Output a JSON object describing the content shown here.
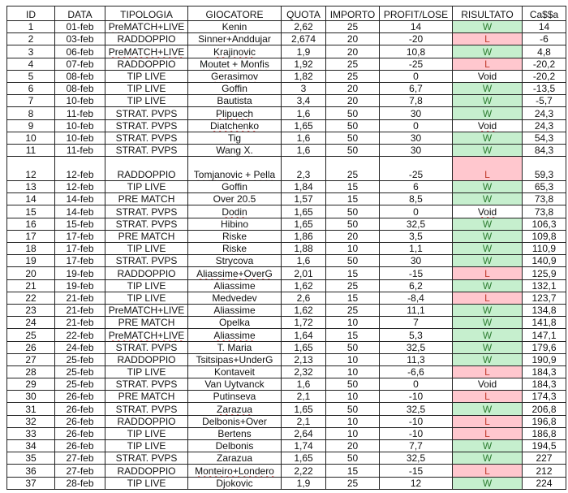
{
  "headers": [
    "ID",
    "DATA",
    "TIPOLOGIA",
    "GIOCATORE",
    "QUOTA",
    "IMPORTO",
    "PROFIT/LOSE",
    "RISULTATO",
    "Ca$$a"
  ],
  "result_colors": {
    "W": {
      "bg": "#c6efce",
      "fg": "#2e7d32"
    },
    "L": {
      "bg": "#ffc7ce",
      "fg": "#c0392b"
    }
  },
  "rows": [
    [
      "1",
      "01-feb",
      "PreMATCH+LIVE",
      "Kenin",
      "2,62",
      "25",
      "14",
      "W",
      "14"
    ],
    [
      "2",
      "03-feb",
      "RADDOPPIO",
      "Sinner+Anddujar",
      "2,674",
      "20",
      "-20",
      "L",
      "-6"
    ],
    [
      "3",
      "06-feb",
      "PreMATCH+LIVE",
      "Krajinovic",
      "1,9",
      "20",
      "10,8",
      "W",
      "4,8"
    ],
    [
      "4",
      "07-feb",
      "RADDOPPIO",
      "Moutet + Monfis",
      "1,92",
      "25",
      "-25",
      "L",
      "-20,2"
    ],
    [
      "5",
      "08-feb",
      "TIP LIVE",
      "Gerasimov",
      "1,82",
      "25",
      "0",
      "Void",
      "-20,2"
    ],
    [
      "6",
      "08-feb",
      "TIP LIVE",
      "Goffin",
      "3",
      "20",
      "6,7",
      "W",
      "-13,5"
    ],
    [
      "7",
      "10-feb",
      "TIP LIVE",
      "Bautista",
      "3,4",
      "20",
      "7,8",
      "W",
      "-5,7"
    ],
    [
      "8",
      "11-feb",
      "STRAT. PVPS",
      "Plipuech",
      "1,6",
      "50",
      "30",
      "W",
      "24,3"
    ],
    [
      "9",
      "10-feb",
      "STRAT. PVPS",
      "Diatchenko",
      "1,65",
      "50",
      "0",
      "Void",
      "24,3"
    ],
    [
      "10",
      "10-feb",
      "STRAT. PVPS",
      "Tig",
      "1,6",
      "50",
      "30",
      "W",
      "54,3"
    ],
    [
      "11",
      "11-feb",
      "STRAT. PVPS",
      "Wang X.",
      "1,6",
      "50",
      "30",
      "W",
      "84,3"
    ],
    [
      "12",
      "12-feb",
      "RADDOPPIO",
      "Tomjanovic + Pella",
      "2,3",
      "25",
      "-25",
      "L",
      "59,3"
    ],
    [
      "13",
      "12-feb",
      "TIP LIVE",
      "Goffin",
      "1,84",
      "15",
      "6",
      "W",
      "65,3"
    ],
    [
      "14",
      "14-feb",
      "PRE MATCH",
      "Over 20.5",
      "1,57",
      "15",
      "8,5",
      "W",
      "73,8"
    ],
    [
      "15",
      "14-feb",
      "STRAT. PVPS",
      "Dodin",
      "1,65",
      "50",
      "0",
      "Void",
      "73,8"
    ],
    [
      "16",
      "15-feb",
      "STRAT. PVPS",
      "Hibino",
      "1,65",
      "50",
      "32,5",
      "W",
      "106,3"
    ],
    [
      "17",
      "17-feb",
      "PRE MATCH",
      "Riske",
      "1,86",
      "20",
      "3,5",
      "W",
      "109,8"
    ],
    [
      "18",
      "17-feb",
      "TIP LIVE",
      "Riske",
      "1,88",
      "10",
      "1,1",
      "W",
      "110,9"
    ],
    [
      "19",
      "17-feb",
      "STRAT. PVPS",
      "Strycova",
      "1,6",
      "50",
      "30",
      "W",
      "140,9"
    ],
    [
      "20",
      "19-feb",
      "RADDOPPIO",
      "Aliassime+OverG",
      "2,01",
      "15",
      "-15",
      "L",
      "125,9"
    ],
    [
      "21",
      "19-feb",
      "TIP LIVE",
      "Aliassime",
      "1,62",
      "25",
      "6,2",
      "W",
      "132,1"
    ],
    [
      "22",
      "21-feb",
      "TIP LIVE",
      "Medvedev",
      "2,6",
      "15",
      "-8,4",
      "L",
      "123,7"
    ],
    [
      "23",
      "21-feb",
      "PreMATCH+LIVE",
      "Aliassime",
      "1,62",
      "25",
      "11,1",
      "W",
      "134,8"
    ],
    [
      "24",
      "21-feb",
      "PRE MATCH",
      "Opelka",
      "1,72",
      "10",
      "7",
      "W",
      "141,8"
    ],
    [
      "25",
      "22-feb",
      "PreMATCH+LIVE",
      "Aliassime",
      "1,64",
      "15",
      "5,3",
      "W",
      "147,1"
    ],
    [
      "26",
      "24-feb",
      "STRAT. PVPS",
      "T. Maria",
      "1,65",
      "50",
      "32,5",
      "W",
      "179,6"
    ],
    [
      "27",
      "25-feb",
      "RADDOPPIO",
      "Tsitsipas+UnderG",
      "2,13",
      "10",
      "11,3",
      "W",
      "190,9"
    ],
    [
      "28",
      "25-feb",
      "TIP LIVE",
      "Kontaveit",
      "2,32",
      "10",
      "-6,6",
      "L",
      "184,3"
    ],
    [
      "29",
      "25-feb",
      "STRAT. PVPS",
      "Van Uytvanck",
      "1,6",
      "50",
      "0",
      "Void",
      "184,3"
    ],
    [
      "30",
      "26-feb",
      "PRE MATCH",
      "Putinseva",
      "2,1",
      "10",
      "-10",
      "L",
      "174,3"
    ],
    [
      "31",
      "26-feb",
      "STRAT. PVPS",
      "Zarazua",
      "1,65",
      "50",
      "32,5",
      "W",
      "206,8"
    ],
    [
      "32",
      "26-feb",
      "RADDOPPIO",
      "Delbonis+Over",
      "2,1",
      "10",
      "-10",
      "L",
      "196,8"
    ],
    [
      "33",
      "26-feb",
      "TIP LIVE",
      "Bertens",
      "2,64",
      "10",
      "-10",
      "L",
      "186,8"
    ],
    [
      "34",
      "26-feb",
      "TIP LIVE",
      "Delbonis",
      "1,74",
      "20",
      "7,7",
      "W",
      "194,5"
    ],
    [
      "35",
      "27-feb",
      "STRAT. PVPS",
      "Zarazua",
      "1,65",
      "50",
      "32,5",
      "W",
      "227"
    ],
    [
      "36",
      "27-feb",
      "RADDOPPIO",
      "Monteiro+Londero",
      "2,22",
      "15",
      "-15",
      "L",
      "212"
    ],
    [
      "37",
      "28-feb",
      "TIP LIVE",
      "Djokovic",
      "1,9",
      "25",
      "12",
      "W",
      "224"
    ]
  ]
}
